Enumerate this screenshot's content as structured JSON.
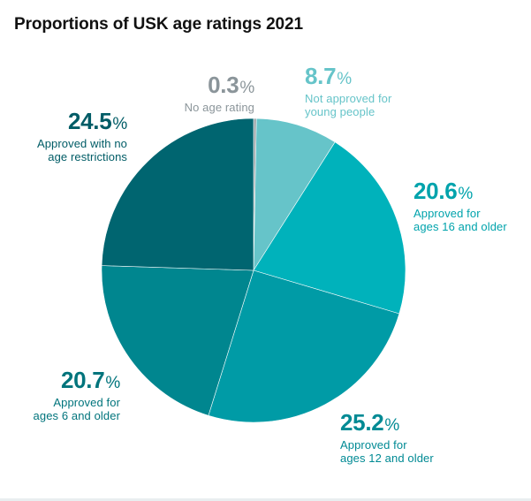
{
  "chart_data": {
    "type": "pie",
    "title": "Proportions of USK age ratings 2021",
    "unit": "%",
    "slices": [
      {
        "label": "No age rating",
        "value": 0.3,
        "value_text": "0.3",
        "color": "#9aa3a7",
        "label_color": "#8b959a"
      },
      {
        "label": "Not approved for young people",
        "label_lines": [
          "Not approved for",
          "young people"
        ],
        "value": 8.7,
        "value_text": "8.7",
        "color": "#66c4c9",
        "label_color": "#66c4c9"
      },
      {
        "label": "Approved for ages 16 and older",
        "label_lines": [
          "Approved for",
          "ages 16 and older"
        ],
        "value": 20.6,
        "value_text": "20.6",
        "color": "#00b2bb",
        "label_color": "#00a3ac"
      },
      {
        "label": "Approved for ages 12 and older",
        "label_lines": [
          "Approved for",
          "ages 12 and older"
        ],
        "value": 25.2,
        "value_text": "25.2",
        "color": "#009ba6",
        "label_color": "#008a94"
      },
      {
        "label": "Approved for ages 6 and older",
        "label_lines": [
          "Approved for",
          "ages 6 and older"
        ],
        "value": 20.7,
        "value_text": "20.7",
        "color": "#00868f",
        "label_color": "#00747c"
      },
      {
        "label": "Approved with no age restrictions",
        "label_lines": [
          "Approved with no",
          "age restrictions"
        ],
        "value": 24.5,
        "value_text": "24.5",
        "color": "#006570",
        "label_color": "#005c66"
      }
    ]
  }
}
